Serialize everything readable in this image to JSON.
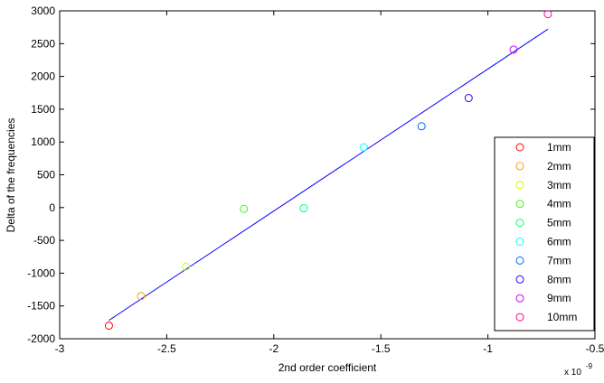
{
  "chart_data": {
    "type": "scatter",
    "title": "",
    "xlabel": "2nd order coefficient",
    "ylabel": "Delta of the frequencies",
    "x_exponent_label": "x 10",
    "x_exponent_power": "-9",
    "xlim": [
      -3,
      -0.5
    ],
    "ylim": [
      -2000,
      3000
    ],
    "x_ticks": [
      "-3",
      "-2.5",
      "-2",
      "-1.5",
      "-1",
      "-0.5"
    ],
    "x_tick_values": [
      -3,
      -2.5,
      -2,
      -1.5,
      -1,
      -0.5
    ],
    "y_ticks": [
      "-2000",
      "-1500",
      "-1000",
      "-500",
      "0",
      "500",
      "1000",
      "1500",
      "2000",
      "2500",
      "3000"
    ],
    "y_tick_values": [
      -2000,
      -1500,
      -1000,
      -500,
      0,
      500,
      1000,
      1500,
      2000,
      2500,
      3000
    ],
    "grid": false,
    "legend_position": "bottom-right",
    "series": [
      {
        "name": "1mm",
        "color": "#ff0000",
        "x": [
          -2.77
        ],
        "y": [
          -1800
        ]
      },
      {
        "name": "2mm",
        "color": "#ff9900",
        "x": [
          -2.62
        ],
        "y": [
          -1350
        ]
      },
      {
        "name": "3mm",
        "color": "#ccff00",
        "x": [
          -2.41
        ],
        "y": [
          -900
        ]
      },
      {
        "name": "4mm",
        "color": "#33ff00",
        "x": [
          -2.14
        ],
        "y": [
          -20
        ]
      },
      {
        "name": "5mm",
        "color": "#00ff66",
        "x": [
          -1.86
        ],
        "y": [
          -10
        ]
      },
      {
        "name": "6mm",
        "color": "#00ffff",
        "x": [
          -1.58
        ],
        "y": [
          920
        ]
      },
      {
        "name": "7mm",
        "color": "#0066ff",
        "x": [
          -1.31
        ],
        "y": [
          1240
        ]
      },
      {
        "name": "8mm",
        "color": "#3300ff",
        "x": [
          -1.09
        ],
        "y": [
          1670
        ]
      },
      {
        "name": "9mm",
        "color": "#cc00ff",
        "x": [
          -0.88
        ],
        "y": [
          2410
        ]
      },
      {
        "name": "10mm",
        "color": "#ff0099",
        "x": [
          -0.72
        ],
        "y": [
          2950
        ]
      }
    ],
    "fit_line": {
      "color": "#0000ff",
      "x": [
        -2.77,
        -0.72
      ],
      "y": [
        -1720,
        2720
      ]
    }
  }
}
